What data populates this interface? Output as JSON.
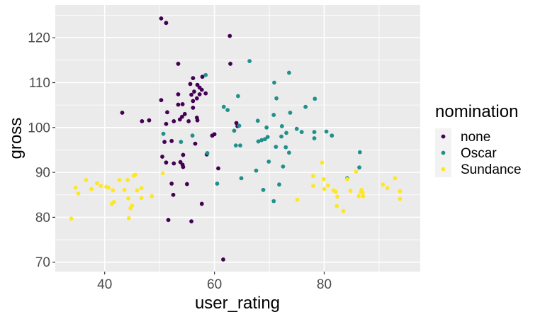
{
  "chart_data": {
    "type": "scatter",
    "xlabel": "user_rating",
    "ylabel": "gross",
    "xlim": [
      31.0,
      97.5
    ],
    "ylim": [
      67.9,
      127.3
    ],
    "x_ticks": [
      40,
      60,
      80
    ],
    "y_ticks": [
      70,
      80,
      90,
      100,
      110,
      120
    ],
    "grid": true,
    "legend": {
      "title": "nomination",
      "position": "right"
    },
    "series": [
      {
        "name": "none",
        "color": "#440154",
        "points": [
          [
            50.3,
            124.3
          ],
          [
            51.2,
            123.3
          ],
          [
            62.8,
            120.4
          ],
          [
            53.4,
            114.2
          ],
          [
            62.9,
            114.2
          ],
          [
            57.8,
            111.3
          ],
          [
            56.1,
            111.0
          ],
          [
            55.6,
            109.7
          ],
          [
            56.9,
            109.5
          ],
          [
            57.3,
            108.9
          ],
          [
            57.7,
            108.4
          ],
          [
            56.3,
            108.0
          ],
          [
            58.4,
            107.6
          ],
          [
            53.4,
            107.4
          ],
          [
            55.8,
            107.3
          ],
          [
            57.3,
            107.4
          ],
          [
            56.8,
            106.5
          ],
          [
            50.3,
            106.1
          ],
          [
            56.1,
            105.9
          ],
          [
            54.2,
            105.2
          ],
          [
            53.4,
            105.1
          ],
          [
            56.1,
            104.4
          ],
          [
            51.4,
            103.4
          ],
          [
            43.2,
            103.3
          ],
          [
            54.6,
            103.0
          ],
          [
            54.1,
            102.4
          ],
          [
            56.8,
            102.2
          ],
          [
            53.7,
            101.8
          ],
          [
            56.9,
            101.6
          ],
          [
            48.1,
            101.6
          ],
          [
            46.8,
            101.4
          ],
          [
            52.6,
            101.4
          ],
          [
            55.3,
            101.4
          ],
          [
            64.0,
            101.0
          ],
          [
            51.2,
            100.8
          ],
          [
            64.2,
            100.3
          ],
          [
            60.0,
            98.5
          ],
          [
            59.6,
            98.2
          ],
          [
            52.2,
            97.0
          ],
          [
            50.9,
            96.8
          ],
          [
            56.5,
            96.4
          ],
          [
            58.6,
            94.0
          ],
          [
            54.3,
            93.9
          ],
          [
            50.5,
            93.5
          ],
          [
            53.8,
            92.3
          ],
          [
            52.6,
            92.0
          ],
          [
            51.2,
            92.2
          ],
          [
            54.2,
            91.7
          ],
          [
            54.3,
            91.2
          ],
          [
            60.7,
            90.9
          ],
          [
            55.0,
            87.4
          ],
          [
            52.2,
            87.5
          ],
          [
            52.5,
            85.0
          ],
          [
            57.7,
            83.0
          ],
          [
            51.6,
            79.4
          ],
          [
            55.8,
            79.1
          ],
          [
            61.6,
            70.6
          ]
        ]
      },
      {
        "name": "Oscar",
        "color": "#21908C",
        "points": [
          [
            58.4,
            111.7
          ],
          [
            66.4,
            114.8
          ],
          [
            73.6,
            112.2
          ],
          [
            70.9,
            110.0
          ],
          [
            64.3,
            107.0
          ],
          [
            71.3,
            106.5
          ],
          [
            78.3,
            106.4
          ],
          [
            61.7,
            104.6
          ],
          [
            76.6,
            104.6
          ],
          [
            62.4,
            103.9
          ],
          [
            73.8,
            103.3
          ],
          [
            70.8,
            102.8
          ],
          [
            67.9,
            101.5
          ],
          [
            72.3,
            100.3
          ],
          [
            64.5,
            100.4
          ],
          [
            69.5,
            100.0
          ],
          [
            63.6,
            99.3
          ],
          [
            75.0,
            99.7
          ],
          [
            75.9,
            99.0
          ],
          [
            80.4,
            99.1
          ],
          [
            78.2,
            99.0
          ],
          [
            73.1,
            98.8
          ],
          [
            81.4,
            98.2
          ],
          [
            56.0,
            98.2
          ],
          [
            50.7,
            98.6
          ],
          [
            72.2,
            98.0
          ],
          [
            69.7,
            97.9
          ],
          [
            69.2,
            97.4
          ],
          [
            68.6,
            97.2
          ],
          [
            68.0,
            96.9
          ],
          [
            78.2,
            97.6
          ],
          [
            53.9,
            96.8
          ],
          [
            71.2,
            95.7
          ],
          [
            73.0,
            95.6
          ],
          [
            63.9,
            96.0
          ],
          [
            64.7,
            96.0
          ],
          [
            73.6,
            94.4
          ],
          [
            86.5,
            94.5
          ],
          [
            58.7,
            94.3
          ],
          [
            69.9,
            92.4
          ],
          [
            86.4,
            91.1
          ],
          [
            72.5,
            91.3
          ],
          [
            67.6,
            90.4
          ],
          [
            64.9,
            88.7
          ],
          [
            84.2,
            88.7
          ],
          [
            60.5,
            87.5
          ],
          [
            71.8,
            87.3
          ],
          [
            68.9,
            86.1
          ],
          [
            70.8,
            83.6
          ]
        ]
      },
      {
        "name": "Sundance",
        "color": "#FDE725",
        "points": [
          [
            79.6,
            92.2
          ],
          [
            50.6,
            89.8
          ],
          [
            85.8,
            90.2
          ],
          [
            45.6,
            89.5
          ],
          [
            45.3,
            89.3
          ],
          [
            78.0,
            89.2
          ],
          [
            36.6,
            88.3
          ],
          [
            42.7,
            88.3
          ],
          [
            44.2,
            88.3
          ],
          [
            79.9,
            88.5
          ],
          [
            92.9,
            88.7
          ],
          [
            84.2,
            88.5
          ],
          [
            38.6,
            87.6
          ],
          [
            78.0,
            87.0
          ],
          [
            80.7,
            87.1
          ],
          [
            39.3,
            87.0
          ],
          [
            90.7,
            87.3
          ],
          [
            40.3,
            86.8
          ],
          [
            40.7,
            86.6
          ],
          [
            46.7,
            86.5
          ],
          [
            34.7,
            86.6
          ],
          [
            80.0,
            86.3
          ],
          [
            91.5,
            86.5
          ],
          [
            37.6,
            86.3
          ],
          [
            41.5,
            86.0
          ],
          [
            45.9,
            86.0
          ],
          [
            43.6,
            86.1
          ],
          [
            82.1,
            85.7
          ],
          [
            86.8,
            86.1
          ],
          [
            81.7,
            86.0
          ],
          [
            84.8,
            85.9
          ],
          [
            86.7,
            85.6
          ],
          [
            87.0,
            85.5
          ],
          [
            93.8,
            85.8
          ],
          [
            35.2,
            85.3
          ],
          [
            86.3,
            84.7
          ],
          [
            82.4,
            84.6
          ],
          [
            87.1,
            84.7
          ],
          [
            44.3,
            84.2
          ],
          [
            48.6,
            84.7
          ],
          [
            93.8,
            84.1
          ],
          [
            46.7,
            84.3
          ],
          [
            41.7,
            83.4
          ],
          [
            41.3,
            83.0
          ],
          [
            75.1,
            83.9
          ],
          [
            82.3,
            82.5
          ],
          [
            45.0,
            82.6
          ],
          [
            44.7,
            82.0
          ],
          [
            83.5,
            81.4
          ],
          [
            44.4,
            79.8
          ],
          [
            33.9,
            79.7
          ]
        ]
      }
    ]
  }
}
